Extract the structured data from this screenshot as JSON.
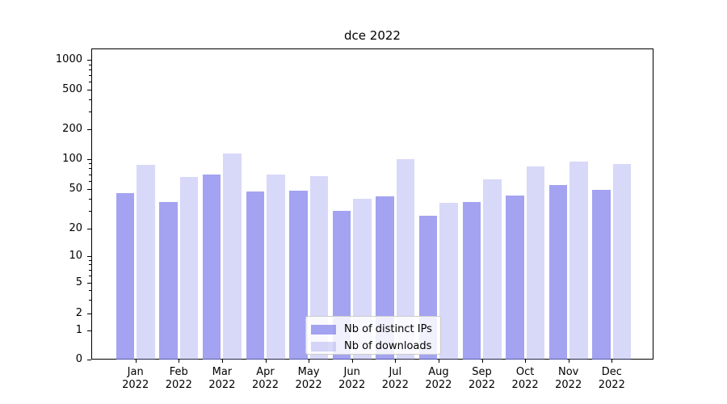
{
  "title": "dce 2022",
  "chart_data": {
    "type": "bar",
    "title": "dce 2022",
    "categories": [
      "Jan 2022",
      "Feb 2022",
      "Mar 2022",
      "Apr 2022",
      "May 2022",
      "Jun 2022",
      "Jul 2022",
      "Aug 2022",
      "Sep 2022",
      "Oct 2022",
      "Nov 2022",
      "Dec 2022"
    ],
    "series": [
      {
        "name": "Nb of distinct IPs",
        "values": [
          45,
          37,
          69,
          47,
          48,
          30,
          42,
          27,
          37,
          43,
          54,
          49
        ]
      },
      {
        "name": "Nb of downloads",
        "values": [
          87,
          66,
          113,
          70,
          67,
          40,
          100,
          36,
          62,
          83,
          93,
          88
        ]
      }
    ],
    "xlabel": "",
    "ylabel": "",
    "yscale": "symlog",
    "yticks": [
      0,
      1,
      2,
      5,
      10,
      20,
      50,
      100,
      200,
      500,
      1000
    ],
    "ylim": [
      0,
      1300
    ],
    "grid": true,
    "legend_position": "lower center"
  },
  "colors": {
    "bar_base": "#7f7feb",
    "bar_distinct_ips": "rgba(127,127,235,0.72)",
    "bar_downloads": "rgba(127,127,235,0.30)",
    "grid_major": "#c6c6c6",
    "grid_minor": "#ededed",
    "axis": "#000000"
  }
}
